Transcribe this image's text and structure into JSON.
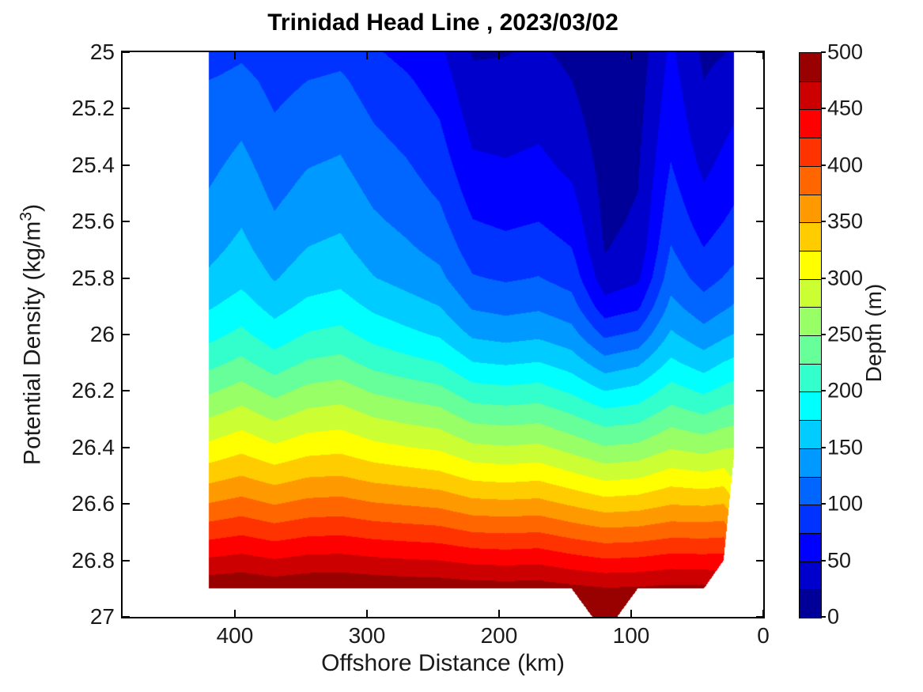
{
  "title": "Trinidad Head Line , 2023/03/02",
  "chart_data": {
    "type": "heatmap",
    "subtype": "filled-contour-section",
    "title": "Trinidad Head Line , 2023/03/02",
    "xlabel": "Offshore Distance (km)",
    "ylabel": "Potential Density (kg/m³)",
    "ylabel_parts": {
      "pre": "Potential Density (kg/m",
      "sup": "3",
      "post": ")"
    },
    "x_axis": {
      "reversed": true,
      "lim": [
        0,
        485
      ],
      "ticks": [
        400,
        300,
        200,
        100,
        0
      ],
      "tick_labels": [
        "400",
        "300",
        "200",
        "100",
        "0"
      ]
    },
    "y_axis": {
      "lim": [
        25,
        27
      ],
      "increases_downward": true,
      "ticks": [
        25,
        25.2,
        25.4,
        25.6,
        25.8,
        26,
        26.2,
        26.4,
        26.6,
        26.8,
        27
      ],
      "tick_labels": [
        "25",
        "25.2",
        "25.4",
        "25.6",
        "25.8",
        "26",
        "26.2",
        "26.4",
        "26.6",
        "26.8",
        "27"
      ]
    },
    "colorbar": {
      "label": "Depth (m)",
      "colormap": "jet",
      "vmin": 0,
      "vmax": 500,
      "band_step": 25,
      "n_bands": 20,
      "ticks": [
        0,
        50,
        100,
        150,
        200,
        250,
        300,
        350,
        400,
        450,
        500
      ],
      "tick_labels": [
        "0",
        "50",
        "100",
        "150",
        "200",
        "250",
        "300",
        "350",
        "400",
        "450",
        "500"
      ]
    },
    "grid": {
      "stations_km": [
        420,
        395,
        370,
        345,
        320,
        295,
        270,
        245,
        220,
        195,
        170,
        145,
        120,
        95,
        70,
        45,
        30,
        22
      ],
      "densities": [
        25.0,
        25.1,
        25.2,
        25.3,
        25.4,
        25.5,
        25.6,
        25.7,
        25.8,
        25.9,
        26.0,
        26.1,
        26.2,
        26.3,
        26.4,
        26.5,
        26.6,
        26.7,
        26.8,
        26.9,
        27.0
      ],
      "sigma_max": [
        26.9,
        26.9,
        26.9,
        26.9,
        26.9,
        26.9,
        26.9,
        26.9,
        26.9,
        26.9,
        26.9,
        26.9,
        27.06,
        26.9,
        26.9,
        26.9,
        26.8,
        26.42
      ],
      "depth_m": [
        [
          85,
          95,
          80,
          88,
          92,
          78,
          68,
          55,
          23,
          24,
          28,
          20,
          8,
          10,
          55,
          20,
          24,
          30
        ],
        [
          100,
          108,
          92,
          100,
          104,
          88,
          78,
          64,
          30,
          30,
          34,
          25,
          10,
          13,
          60,
          25,
          32,
          38
        ],
        [
          106,
          116,
          99,
          108,
          112,
          96,
          86,
          72,
          38,
          37,
          41,
          30,
          12,
          16,
          65,
          30,
          40,
          46
        ],
        [
          112,
          124,
          106,
          116,
          120,
          104,
          94,
          80,
          46,
          44,
          48,
          36,
          14,
          19,
          70,
          36,
          48,
          54
        ],
        [
          119,
          132,
          113,
          124,
          128,
          112,
          102,
          88,
          55,
          52,
          56,
          44,
          16,
          22,
          76,
          44,
          56,
          62
        ],
        [
          126,
          140,
          120,
          132,
          137,
          120,
          110,
          97,
          65,
          61,
          65,
          54,
          18,
          25,
          84,
          54,
          65,
          71
        ],
        [
          134,
          148,
          128,
          141,
          146,
          129,
          119,
          107,
          76,
          71,
          75,
          64,
          20,
          28,
          92,
          64,
          75,
          81
        ],
        [
          143,
          157,
          137,
          151,
          156,
          139,
          129,
          118,
          88,
          83,
          87,
          76,
          24,
          33,
          102,
          76,
          87,
          93
        ],
        [
          154,
          168,
          148,
          163,
          168,
          151,
          141,
          131,
          102,
          97,
          101,
          90,
          35,
          45,
          114,
          90,
          101,
          107
        ],
        [
          172,
          186,
          166,
          181,
          186,
          170,
          160,
          150,
          122,
          117,
          121,
          110,
          60,
          70,
          132,
          110,
          121,
          127
        ],
        [
          192,
          206,
          186,
          202,
          207,
          191,
          181,
          172,
          146,
          141,
          145,
          134,
          95,
          105,
          154,
          134,
          145,
          151
        ],
        [
          217,
          231,
          212,
          228,
          233,
          217,
          208,
          200,
          176,
          172,
          176,
          163,
          135,
          145,
          180,
          163,
          176,
          181
        ],
        [
          246,
          260,
          242,
          257,
          262,
          247,
          239,
          232,
          210,
          207,
          210,
          196,
          175,
          183,
          210,
          196,
          207,
          211
        ],
        [
          276,
          289,
          273,
          286,
          290,
          277,
          270,
          264,
          245,
          242,
          245,
          231,
          215,
          220,
          241,
          231,
          240,
          243
        ],
        [
          306,
          318,
          304,
          315,
          318,
          307,
          301,
          296,
          280,
          277,
          280,
          266,
          252,
          256,
          273,
          266,
          273,
          275
        ],
        [
          340,
          350,
          338,
          348,
          350,
          341,
          336,
          331,
          318,
          315,
          318,
          305,
          292,
          296,
          310,
          305,
          310,
          292
        ],
        [
          376,
          384,
          374,
          382,
          384,
          377,
          373,
          369,
          358,
          356,
          358,
          347,
          336,
          339,
          349,
          347,
          350,
          330
        ],
        [
          414,
          421,
          412,
          419,
          421,
          415,
          412,
          409,
          400,
          398,
          400,
          390,
          382,
          384,
          391,
          390,
          392,
          370
        ],
        [
          454,
          459,
          452,
          458,
          459,
          455,
          452,
          450,
          444,
          442,
          444,
          435,
          428,
          430,
          436,
          435,
          436,
          410
        ],
        [
          494,
          497,
          492,
          496,
          497,
          494,
          492,
          491,
          488,
          487,
          488,
          482,
          477,
          478,
          482,
          482,
          470,
          450
        ],
        [
          494,
          497,
          492,
          496,
          497,
          494,
          492,
          491,
          488,
          487,
          488,
          482,
          492,
          478,
          482,
          482,
          470,
          450
        ]
      ]
    }
  }
}
